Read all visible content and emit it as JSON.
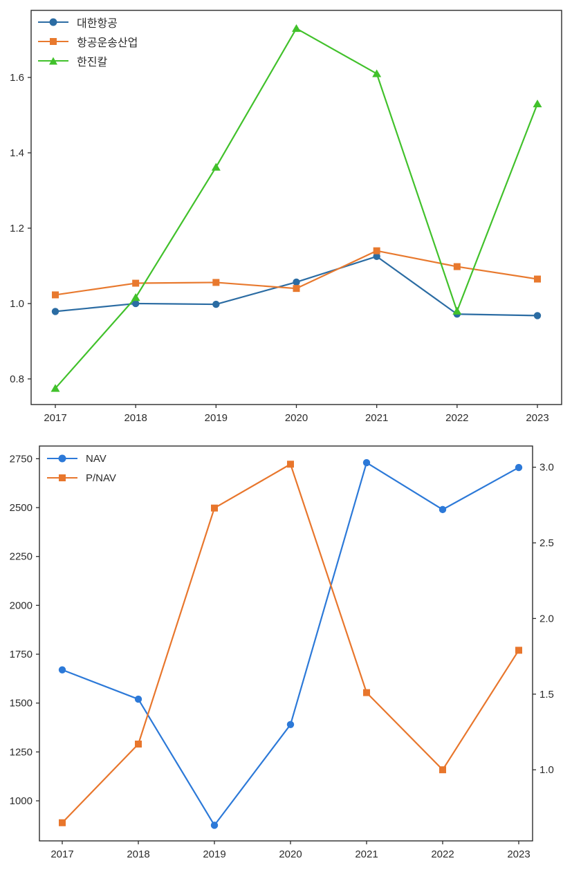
{
  "page": {
    "background": "#ffffff",
    "text_color": "#2b2b2b"
  },
  "chart_data": [
    {
      "type": "line",
      "title": "",
      "xlabel": "",
      "ylabel": "",
      "grid": false,
      "legend_position": "upper left",
      "x_categories": [
        "2017",
        "2018",
        "2019",
        "2020",
        "2021",
        "2022",
        "2023"
      ],
      "series": [
        {
          "name": "대한항공",
          "axis": "left",
          "marker": "circle",
          "color": "#2b6ca3",
          "values": [
            0.979,
            1.0,
            0.998,
            1.057,
            1.125,
            0.972,
            0.968
          ]
        },
        {
          "name": "항공운송산업",
          "axis": "left",
          "marker": "square",
          "color": "#e8792e",
          "values": [
            1.023,
            1.054,
            1.056,
            1.04,
            1.14,
            1.098,
            1.065
          ]
        },
        {
          "name": "한진칼",
          "axis": "left",
          "marker": "triangle",
          "color": "#41c12b",
          "values": [
            0.775,
            1.016,
            1.362,
            1.73,
            1.61,
            0.98,
            1.53
          ]
        }
      ],
      "axes": {
        "left": {
          "tick_labels": [
            "0.8",
            "1.0",
            "1.2",
            "1.4",
            "1.6"
          ],
          "tick_values": [
            0.8,
            1.0,
            1.2,
            1.4,
            1.6
          ],
          "lim": [
            0.732,
            1.778
          ]
        },
        "bottom": {
          "tick_labels": [
            "2017",
            "2018",
            "2019",
            "2020",
            "2021",
            "2022",
            "2023"
          ]
        }
      }
    },
    {
      "type": "line",
      "title": "",
      "xlabel": "",
      "ylabel": "",
      "grid": false,
      "legend_position": "upper left",
      "x_categories": [
        "2017",
        "2018",
        "2019",
        "2020",
        "2021",
        "2022",
        "2023"
      ],
      "series": [
        {
          "name": "NAV",
          "axis": "left",
          "marker": "circle",
          "color": "#2c79d8",
          "values": [
            1670,
            1520,
            875,
            1390,
            2730,
            2490,
            2705
          ]
        },
        {
          "name": "P/NAV",
          "axis": "right",
          "marker": "square",
          "color": "#e8762c",
          "values": [
            0.65,
            1.17,
            2.73,
            3.02,
            1.51,
            1.0,
            1.79
          ]
        }
      ],
      "axes": {
        "left": {
          "tick_labels": [
            "1000",
            "1250",
            "1500",
            "1750",
            "2000",
            "2250",
            "2500",
            "2750"
          ],
          "tick_values": [
            1000,
            1250,
            1500,
            1750,
            2000,
            2250,
            2500,
            2750
          ],
          "lim": [
            795,
            2815
          ]
        },
        "right": {
          "tick_labels": [
            "1.0",
            "1.5",
            "2.0",
            "2.5",
            "3.0"
          ],
          "tick_values": [
            1.0,
            1.5,
            2.0,
            2.5,
            3.0
          ],
          "lim": [
            0.53,
            3.14
          ]
        },
        "bottom": {
          "tick_labels": [
            "2017",
            "2018",
            "2019",
            "2020",
            "2021",
            "2022",
            "2023"
          ]
        }
      }
    }
  ]
}
